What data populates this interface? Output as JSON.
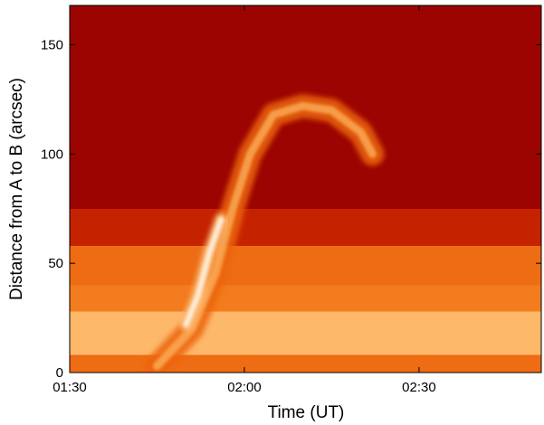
{
  "chart_data": {
    "type": "heatmap",
    "title": "",
    "xlabel": "Time (UT)",
    "ylabel": "Distance from A to B (arcsec)",
    "xlim": [
      "01:30",
      "02:51"
    ],
    "ylim": [
      0,
      168
    ],
    "x_ticks": [
      "01:30",
      "02:00",
      "02:30"
    ],
    "y_ticks": [
      0,
      50,
      100,
      150
    ],
    "grid": false,
    "colormap": [
      "#7a0000",
      "#a80600",
      "#cc2a00",
      "#ea5d08",
      "#f7902c",
      "#ffc27a",
      "#fff4e6"
    ],
    "background_intensity": {
      "bands_arcsec": [
        [
          0,
          8
        ],
        [
          8,
          28
        ],
        [
          28,
          40
        ],
        [
          40,
          58
        ],
        [
          58,
          75
        ],
        [
          75,
          168
        ]
      ],
      "description_levels": [
        0.55,
        0.8,
        0.6,
        0.55,
        0.3,
        0.12
      ]
    },
    "features": {
      "eruption_front": {
        "points": [
          {
            "x": "01:45",
            "y": 3
          },
          {
            "x": "01:51",
            "y": 20
          },
          {
            "x": "01:55",
            "y": 45
          },
          {
            "x": "01:58",
            "y": 75
          },
          {
            "x": "02:01",
            "y": 100
          },
          {
            "x": "02:05",
            "y": 118
          },
          {
            "x": "02:10",
            "y": 122
          },
          {
            "x": "02:15",
            "y": 120
          },
          {
            "x": "02:20",
            "y": 110
          },
          {
            "x": "02:22",
            "y": 100
          }
        ],
        "intensity": 0.75
      },
      "bright_core": {
        "points": [
          {
            "x": "01:50",
            "y": 22
          },
          {
            "x": "01:52",
            "y": 35
          },
          {
            "x": "01:54",
            "y": 55
          },
          {
            "x": "01:56",
            "y": 70
          }
        ],
        "intensity": 1.0
      }
    }
  }
}
